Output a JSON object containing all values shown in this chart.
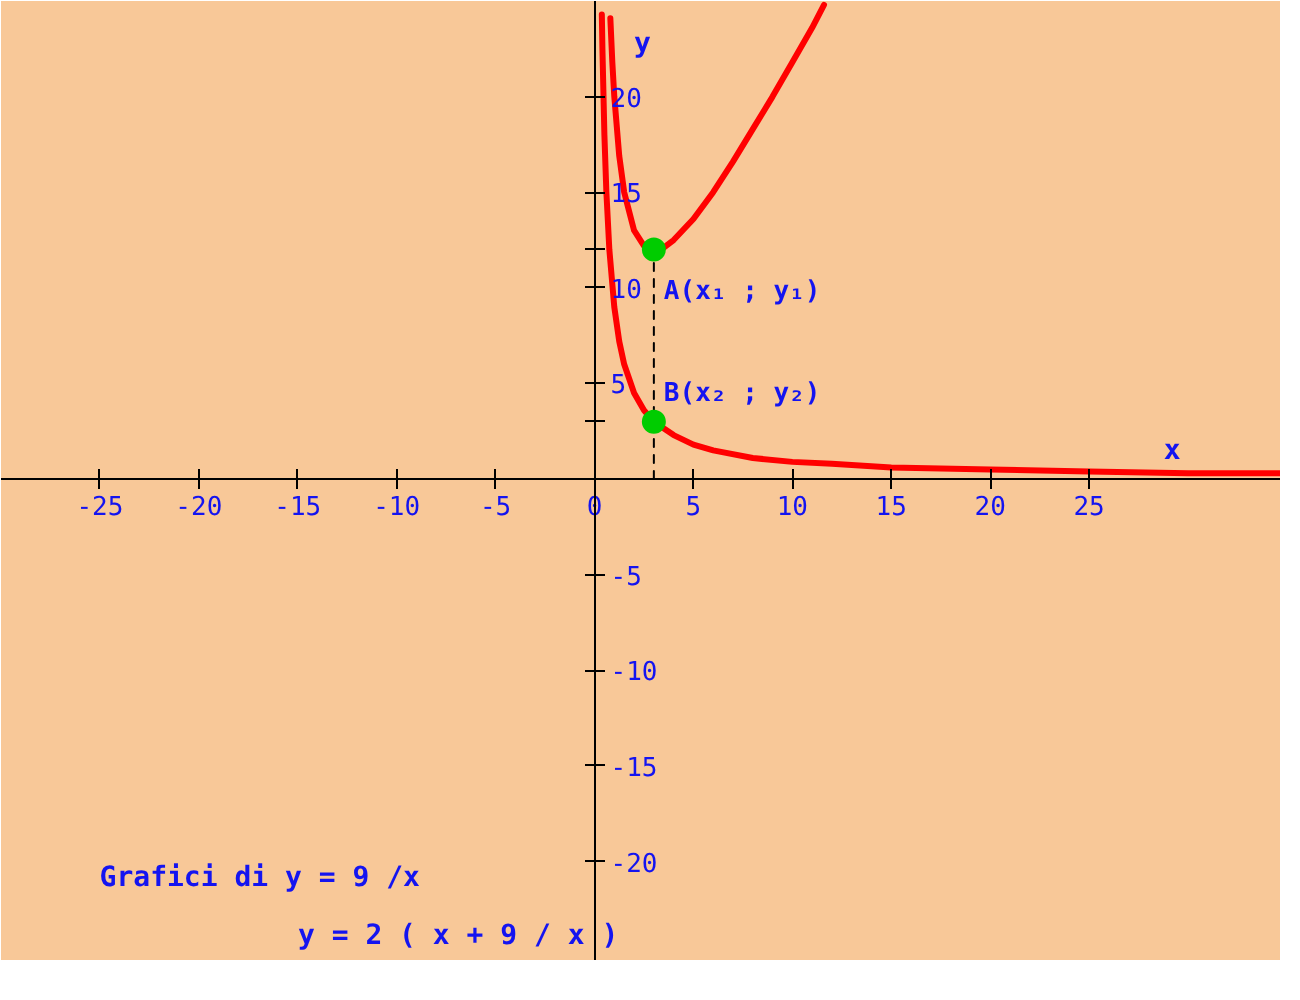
{
  "chart_data": {
    "type": "line",
    "xlabel": "x",
    "ylabel": "y",
    "xlim": [
      -30,
      34.7
    ],
    "ylim": [
      -25.2,
      25
    ],
    "xticks": [
      -25,
      -20,
      -15,
      -10,
      -5,
      0,
      5,
      10,
      15,
      20,
      25
    ],
    "yticks": [
      -20,
      -15,
      -10,
      -5,
      {
        "value": 3,
        "label": null
      },
      5,
      10,
      {
        "value": 12,
        "label": null
      },
      15,
      20
    ],
    "series": [
      {
        "color": "#ff0000",
        "x": [
          0.37,
          0.4,
          0.5,
          0.6,
          0.75,
          1,
          1.25,
          1.5,
          2,
          2.5,
          3,
          4,
          5,
          6,
          8,
          10,
          12,
          15,
          20,
          25,
          30,
          34.7
        ],
        "values": [
          24.3,
          22.5,
          18,
          15,
          12,
          9,
          7.2,
          6,
          4.5,
          3.6,
          3,
          2.3,
          1.8,
          1.5,
          1.1,
          0.9,
          0.8,
          0.6,
          0.5,
          0.4,
          0.3,
          0.3
        ]
      },
      {
        "color": "#ff0000",
        "x": [
          0.8,
          0.9,
          1,
          1.25,
          1.5,
          2,
          2.5,
          3,
          3.5,
          4,
          5,
          6,
          7,
          8,
          9,
          10,
          11,
          11.6
        ],
        "values": [
          24.1,
          21.8,
          20,
          16.9,
          15,
          13,
          12.2,
          12,
          12.1,
          12.5,
          13.6,
          15,
          16.6,
          18.3,
          20,
          21.8,
          23.6,
          24.8
        ]
      },
      {
        "color": "#000000",
        "line_style": "dashed",
        "x": [
          3,
          3
        ],
        "values": [
          0,
          12
        ]
      },
      {
        "type": "scatter",
        "color": "#00cc00",
        "marker": "circle",
        "x": [
          3,
          3
        ],
        "values": [
          12,
          3
        ]
      }
    ],
    "annotations": [
      {
        "text": "A(x₁ ; y₁)",
        "x": 3,
        "y": 12
      },
      {
        "text": "B(x₂ ; y₂)",
        "x": 3,
        "y": 3
      },
      "Grafici di y = 9 /x",
      "y = 2 ( x + 9 / x )"
    ]
  }
}
